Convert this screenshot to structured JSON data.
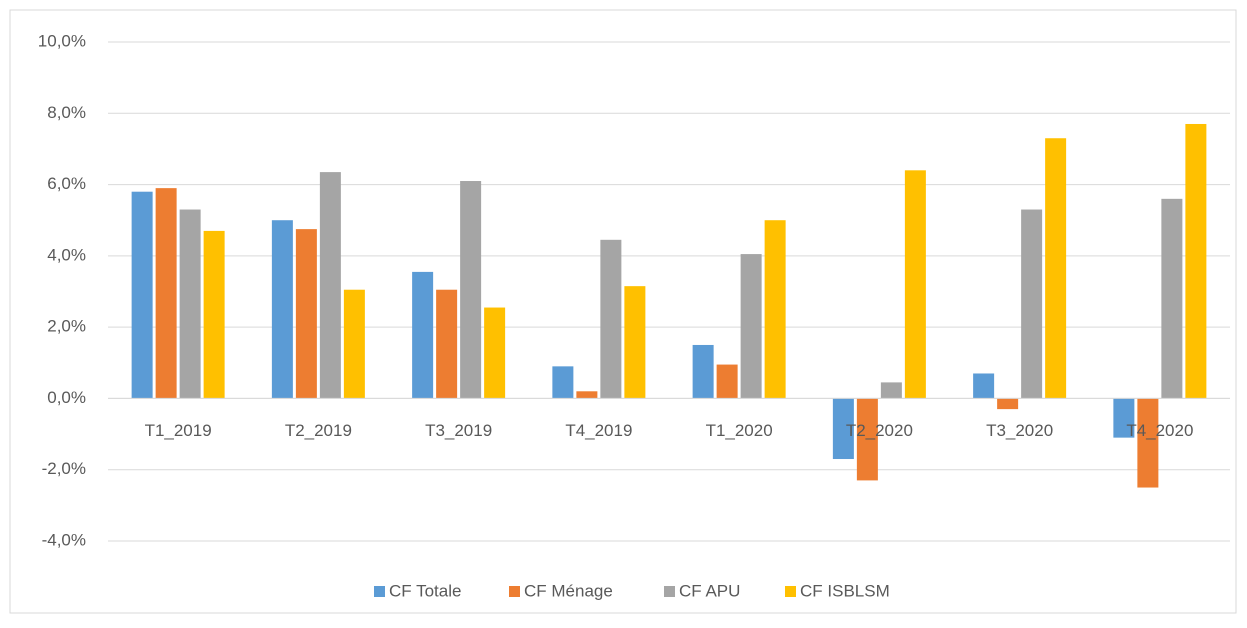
{
  "chart_data": {
    "type": "bar",
    "categories": [
      "T1_2019",
      "T2_2019",
      "T3_2019",
      "T4_2019",
      "T1_2020",
      "T2_2020",
      "T3_2020",
      "T4_2020"
    ],
    "series": [
      {
        "name": "CF Totale",
        "color": "#5b9bd5",
        "values": [
          5.8,
          5.0,
          3.55,
          0.9,
          1.5,
          -1.7,
          0.7,
          -1.1
        ]
      },
      {
        "name": "CF Ménage",
        "color": "#ed7d31",
        "values": [
          5.9,
          4.75,
          3.05,
          0.2,
          0.95,
          -2.3,
          -0.3,
          -2.5
        ]
      },
      {
        "name": "CF APU",
        "color": "#a5a5a5",
        "values": [
          5.3,
          6.35,
          6.1,
          4.45,
          4.05,
          0.45,
          5.3,
          5.6
        ]
      },
      {
        "name": "CF ISBLSM",
        "color": "#ffc000",
        "values": [
          4.7,
          3.05,
          2.55,
          3.15,
          5.0,
          6.4,
          7.3,
          7.7
        ]
      }
    ],
    "ylim": [
      -4,
      10
    ],
    "yticks": [
      {
        "value": -4,
        "label": "-4,0%"
      },
      {
        "value": -2,
        "label": "-2,0%"
      },
      {
        "value": 0,
        "label": "0,0%"
      },
      {
        "value": 2,
        "label": "2,0%"
      },
      {
        "value": 4,
        "label": "4,0%"
      },
      {
        "value": 6,
        "label": "6,0%"
      },
      {
        "value": 8,
        "label": "8,0%"
      },
      {
        "value": 10,
        "label": "10,0%"
      }
    ],
    "grid": true,
    "legend": "bottom"
  }
}
